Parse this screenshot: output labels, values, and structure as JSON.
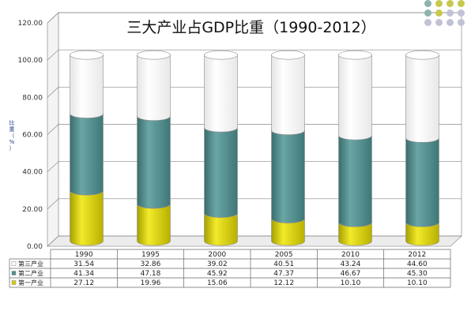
{
  "chart_data": {
    "type": "bar",
    "stacked": true,
    "title": "三大产业占GDP比重（1990-2012）",
    "ylabel": "比重（%）",
    "ylim": [
      0,
      120
    ],
    "yticks": [
      "0.00",
      "20.00",
      "40.00",
      "60.00",
      "80.00",
      "100.00",
      "120.00"
    ],
    "categories": [
      "1990",
      "1995",
      "2000",
      "2005",
      "2010",
      "2012"
    ],
    "series": [
      {
        "name": "第一产业",
        "color": "#d4cc10",
        "values": [
          27.12,
          19.96,
          15.06,
          12.12,
          10.1,
          10.1
        ],
        "labels": [
          "27.12",
          "19.96",
          "15.06",
          "12.12",
          "10.10",
          "10.10"
        ]
      },
      {
        "name": "第二产业",
        "color": "#4f8c8c",
        "values": [
          41.34,
          47.18,
          45.92,
          47.37,
          46.67,
          45.3
        ],
        "labels": [
          "41.34",
          "47.18",
          "45.92",
          "47.37",
          "46.67",
          "45.30"
        ]
      },
      {
        "name": "第三产业",
        "color": "#ffffff",
        "values": [
          31.54,
          32.86,
          39.02,
          40.51,
          43.24,
          44.6
        ],
        "labels": [
          "31.54",
          "32.86",
          "39.02",
          "40.51",
          "43.24",
          "44.60"
        ]
      }
    ],
    "grid": true,
    "legend": "bottom-table"
  },
  "decor": {
    "dot_colors": [
      "#8fb2ae",
      "#c7c94e",
      "#c7c94e",
      "#c7c94e",
      "#8fb2ae",
      "#c7c94e",
      "#c2c2d6",
      "#c2c2d6",
      "#c2c2d6",
      "#c2c2d6",
      "#c2c2d6",
      "#c2c2d6"
    ]
  }
}
